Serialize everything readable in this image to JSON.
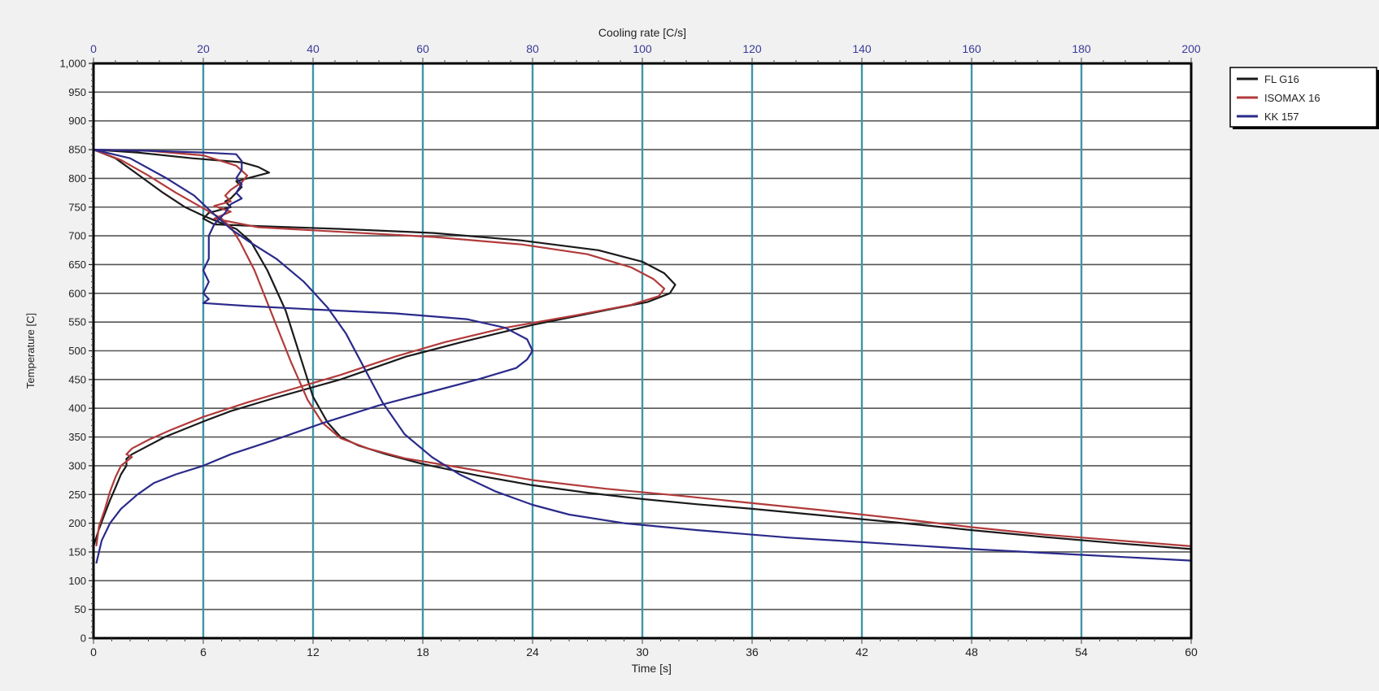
{
  "chart_data": {
    "type": "line",
    "xlabel": "Time [s]",
    "x2label": "Cooling rate [C/s]",
    "ylabel": "Temperature [C]",
    "xlim": [
      0,
      60
    ],
    "x2lim": [
      0,
      200
    ],
    "ylim": [
      0,
      1000
    ],
    "xticks": [
      "0",
      "6",
      "12",
      "18",
      "24",
      "30",
      "36",
      "42",
      "48",
      "54",
      "60"
    ],
    "x2ticks": [
      "0",
      "20",
      "40",
      "60",
      "80",
      "100",
      "120",
      "140",
      "160",
      "180",
      "200"
    ],
    "yticks": [
      "0",
      "50",
      "100",
      "150",
      "200",
      "250",
      "300",
      "350",
      "400",
      "450",
      "500",
      "550",
      "600",
      "650",
      "700",
      "750",
      "800",
      "850",
      "900",
      "950",
      "1,000"
    ],
    "grid": true,
    "legend_position": "outside-right-top",
    "series": [
      {
        "name": "FL G16",
        "color": "#1a1a1a",
        "time_curve": [
          [
            0,
            850
          ],
          [
            1.2,
            835
          ],
          [
            2.5,
            805
          ],
          [
            3.8,
            775
          ],
          [
            5,
            750
          ],
          [
            6,
            735
          ],
          [
            7,
            722
          ],
          [
            7.8,
            712
          ],
          [
            8.6,
            690
          ],
          [
            9.5,
            640
          ],
          [
            10.5,
            570
          ],
          [
            11.3,
            490
          ],
          [
            12,
            420
          ],
          [
            12.8,
            375
          ],
          [
            13.5,
            350
          ],
          [
            14.5,
            335
          ],
          [
            16,
            320
          ],
          [
            18,
            303
          ],
          [
            21,
            283
          ],
          [
            24,
            266
          ],
          [
            27,
            253
          ],
          [
            30,
            242
          ],
          [
            33,
            233
          ],
          [
            36,
            225
          ],
          [
            40,
            213
          ],
          [
            44,
            201
          ],
          [
            48,
            188
          ],
          [
            52,
            176
          ],
          [
            56,
            165
          ],
          [
            60,
            155
          ]
        ],
        "cooling_rate_curve": [
          [
            0,
            850
          ],
          [
            8,
            845
          ],
          [
            18,
            835
          ],
          [
            27,
            828
          ],
          [
            30,
            820
          ],
          [
            32,
            810
          ],
          [
            28,
            800
          ],
          [
            26,
            795
          ],
          [
            27,
            785
          ],
          [
            26,
            775
          ],
          [
            25,
            765
          ],
          [
            24,
            760
          ],
          [
            25,
            750
          ],
          [
            21,
            740
          ],
          [
            20,
            730
          ],
          [
            22,
            720
          ],
          [
            30,
            717
          ],
          [
            45,
            712
          ],
          [
            62,
            705
          ],
          [
            78,
            692
          ],
          [
            92,
            675
          ],
          [
            100,
            655
          ],
          [
            104,
            635
          ],
          [
            106,
            615
          ],
          [
            105,
            600
          ],
          [
            101,
            585
          ],
          [
            93,
            570
          ],
          [
            80,
            545
          ],
          [
            67,
            515
          ],
          [
            57,
            490
          ],
          [
            45,
            450
          ],
          [
            33,
            418
          ],
          [
            25,
            395
          ],
          [
            20,
            377
          ],
          [
            13,
            350
          ],
          [
            10,
            335
          ],
          [
            7,
            320
          ],
          [
            6,
            312
          ],
          [
            6,
            300
          ],
          [
            5,
            285
          ],
          [
            4,
            262
          ],
          [
            3,
            240
          ],
          [
            2,
            215
          ],
          [
            1,
            190
          ],
          [
            0,
            160
          ]
        ]
      },
      {
        "name": "ISOMAX 16",
        "color": "#b23a3a",
        "time_curve": [
          [
            0,
            850
          ],
          [
            1.5,
            832
          ],
          [
            3,
            805
          ],
          [
            4.5,
            775
          ],
          [
            6,
            748
          ],
          [
            7,
            730
          ],
          [
            7.5,
            715
          ],
          [
            8,
            690
          ],
          [
            8.8,
            640
          ],
          [
            9.8,
            560
          ],
          [
            10.8,
            480
          ],
          [
            11.7,
            415
          ],
          [
            12.5,
            375
          ],
          [
            13.5,
            348
          ],
          [
            15,
            330
          ],
          [
            17,
            313
          ],
          [
            20,
            297
          ],
          [
            24,
            275
          ],
          [
            28,
            260
          ],
          [
            32,
            248
          ],
          [
            36,
            235
          ],
          [
            40,
            222
          ],
          [
            44,
            208
          ],
          [
            48,
            193
          ],
          [
            52,
            180
          ],
          [
            56,
            170
          ],
          [
            60,
            160
          ]
        ],
        "cooling_rate_curve": [
          [
            0,
            850
          ],
          [
            10,
            848
          ],
          [
            20,
            840
          ],
          [
            26,
            822
          ],
          [
            28,
            805
          ],
          [
            27,
            793
          ],
          [
            25,
            780
          ],
          [
            24,
            770
          ],
          [
            25,
            760
          ],
          [
            22,
            752
          ],
          [
            25,
            742
          ],
          [
            22,
            730
          ],
          [
            30,
            715
          ],
          [
            45,
            707
          ],
          [
            62,
            698
          ],
          [
            78,
            685
          ],
          [
            90,
            668
          ],
          [
            98,
            645
          ],
          [
            102,
            625
          ],
          [
            104,
            608
          ],
          [
            103,
            595
          ],
          [
            98,
            580
          ],
          [
            88,
            562
          ],
          [
            75,
            540
          ],
          [
            64,
            515
          ],
          [
            55,
            490
          ],
          [
            45,
            458
          ],
          [
            35,
            430
          ],
          [
            28,
            410
          ],
          [
            20,
            385
          ],
          [
            14,
            362
          ],
          [
            10,
            345
          ],
          [
            7,
            330
          ],
          [
            6,
            320
          ],
          [
            7,
            315
          ],
          [
            5,
            300
          ],
          [
            4,
            280
          ],
          [
            3,
            255
          ],
          [
            2,
            222
          ],
          [
            1,
            195
          ],
          [
            0.5,
            160
          ]
        ]
      },
      {
        "name": "KK 157",
        "color": "#2a2a8a",
        "time_curve": [
          [
            0,
            850
          ],
          [
            2,
            835
          ],
          [
            4,
            800
          ],
          [
            5.5,
            770
          ],
          [
            6.5,
            740
          ],
          [
            7.5,
            712
          ],
          [
            8.5,
            690
          ],
          [
            10,
            660
          ],
          [
            11.5,
            620
          ],
          [
            12.8,
            575
          ],
          [
            13.8,
            530
          ],
          [
            14.8,
            470
          ],
          [
            15.8,
            410
          ],
          [
            17,
            355
          ],
          [
            18.5,
            315
          ],
          [
            20,
            285
          ],
          [
            22,
            255
          ],
          [
            24,
            232
          ],
          [
            26,
            215
          ],
          [
            29,
            200
          ],
          [
            33,
            188
          ],
          [
            38,
            175
          ],
          [
            43,
            165
          ],
          [
            48,
            155
          ],
          [
            54,
            145
          ],
          [
            60,
            135
          ]
        ],
        "cooling_rate_curve": [
          [
            0,
            850
          ],
          [
            10,
            848
          ],
          [
            20,
            845
          ],
          [
            26,
            842
          ],
          [
            27,
            830
          ],
          [
            27,
            815
          ],
          [
            26,
            800
          ],
          [
            27,
            790
          ],
          [
            26,
            775
          ],
          [
            27,
            765
          ],
          [
            25,
            755
          ],
          [
            24,
            740
          ],
          [
            22,
            720
          ],
          [
            21,
            700
          ],
          [
            21,
            680
          ],
          [
            21,
            660
          ],
          [
            20,
            640
          ],
          [
            21,
            620
          ],
          [
            20,
            600
          ],
          [
            21,
            590
          ],
          [
            20,
            583
          ],
          [
            28,
            578
          ],
          [
            40,
            572
          ],
          [
            55,
            565
          ],
          [
            68,
            555
          ],
          [
            75,
            540
          ],
          [
            79,
            520
          ],
          [
            80,
            500
          ],
          [
            79,
            485
          ],
          [
            77,
            470
          ],
          [
            70,
            450
          ],
          [
            62,
            430
          ],
          [
            52,
            405
          ],
          [
            42,
            375
          ],
          [
            33,
            345
          ],
          [
            25,
            320
          ],
          [
            20,
            300
          ],
          [
            15,
            285
          ],
          [
            11,
            270
          ],
          [
            8,
            250
          ],
          [
            5,
            225
          ],
          [
            3,
            200
          ],
          [
            1.5,
            170
          ],
          [
            0.5,
            130
          ]
        ]
      }
    ]
  }
}
